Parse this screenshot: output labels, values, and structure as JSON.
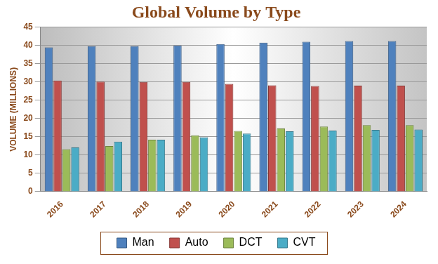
{
  "chart_data": {
    "type": "bar",
    "title": "Global Volume by Type",
    "y_label": "VOLUME (MILLIONS)",
    "categories": [
      "2016",
      "2017",
      "2018",
      "2019",
      "2020",
      "2021",
      "2022",
      "2023",
      "2024"
    ],
    "series": [
      {
        "name": "Man",
        "color": "#4f81bd",
        "values": [
          39.5,
          39.8,
          39.8,
          40.0,
          40.4,
          40.8,
          41.0,
          41.2,
          41.2
        ]
      },
      {
        "name": "Auto",
        "color": "#c0504d",
        "values": [
          30.4,
          30.1,
          30.0,
          30.0,
          29.5,
          29.1,
          28.9,
          29.0,
          29.0
        ]
      },
      {
        "name": "DCT",
        "color": "#9bbb59",
        "values": [
          11.6,
          12.5,
          14.2,
          15.4,
          16.6,
          17.3,
          17.8,
          18.2,
          18.2
        ]
      },
      {
        "name": "CVT",
        "color": "#4bacc6",
        "values": [
          12.1,
          13.7,
          14.2,
          14.9,
          15.9,
          16.5,
          16.7,
          16.9,
          17.0
        ]
      }
    ],
    "ylim": [
      0,
      45
    ],
    "yticks": [
      0,
      5,
      10,
      15,
      20,
      25,
      30,
      35,
      40,
      45
    ],
    "grid": true,
    "legend": "bottom"
  }
}
